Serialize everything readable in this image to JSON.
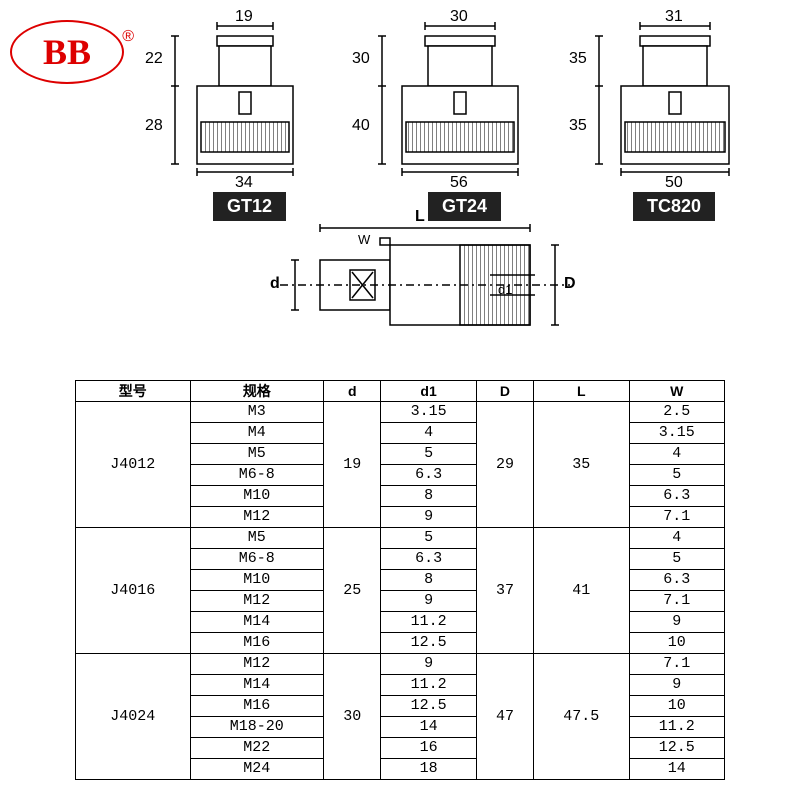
{
  "logo": {
    "text": "BB",
    "trademark": "®"
  },
  "drawings": [
    {
      "label": "GT12",
      "top_w": "19",
      "upper_h": "22",
      "lower_h": "28",
      "bot_w": "34"
    },
    {
      "label": "GT24",
      "top_w": "30",
      "upper_h": "30",
      "lower_h": "40",
      "bot_w": "56"
    },
    {
      "label": "TC820",
      "top_w": "31",
      "upper_h": "35",
      "lower_h": "35",
      "bot_w": "50"
    }
  ],
  "mid": {
    "L": "L",
    "W": "W",
    "d": "d",
    "d1": "d1",
    "D": "D"
  },
  "table": {
    "headers": [
      "型号",
      "规格",
      "d",
      "d1",
      "D",
      "L",
      "W"
    ],
    "groups": [
      {
        "model": "J4012",
        "d": "19",
        "D": "29",
        "L": "35",
        "rows": [
          {
            "spec": "M3",
            "d1": "3.15",
            "W": "2.5"
          },
          {
            "spec": "M4",
            "d1": "4",
            "W": "3.15"
          },
          {
            "spec": "M5",
            "d1": "5",
            "W": "4"
          },
          {
            "spec": "M6-8",
            "d1": "6.3",
            "W": "5"
          },
          {
            "spec": "M10",
            "d1": "8",
            "W": "6.3"
          },
          {
            "spec": "M12",
            "d1": "9",
            "W": "7.1"
          }
        ]
      },
      {
        "model": "J4016",
        "d": "25",
        "D": "37",
        "L": "41",
        "rows": [
          {
            "spec": "M5",
            "d1": "5",
            "W": "4"
          },
          {
            "spec": "M6-8",
            "d1": "6.3",
            "W": "5"
          },
          {
            "spec": "M10",
            "d1": "8",
            "W": "6.3"
          },
          {
            "spec": "M12",
            "d1": "9",
            "W": "7.1"
          },
          {
            "spec": "M14",
            "d1": "11.2",
            "W": "9"
          },
          {
            "spec": "M16",
            "d1": "12.5",
            "W": "10"
          }
        ]
      },
      {
        "model": "J4024",
        "d": "30",
        "D": "47",
        "L": "47.5",
        "rows": [
          {
            "spec": "M12",
            "d1": "9",
            "W": "7.1"
          },
          {
            "spec": "M14",
            "d1": "11.2",
            "W": "9"
          },
          {
            "spec": "M16",
            "d1": "12.5",
            "W": "10"
          },
          {
            "spec": "M18-20",
            "d1": "14",
            "W": "11.2"
          },
          {
            "spec": "M22",
            "d1": "16",
            "W": "12.5"
          },
          {
            "spec": "M24",
            "d1": "18",
            "W": "14"
          }
        ]
      }
    ]
  },
  "style": {
    "line_color": "#000000",
    "fill_color": "#ffffff",
    "label_bg": "#222222",
    "label_fg": "#ffffff",
    "logo_color": "#dd0000",
    "table_font": "Courier New",
    "font_size_dim": 16,
    "font_size_label": 18
  }
}
